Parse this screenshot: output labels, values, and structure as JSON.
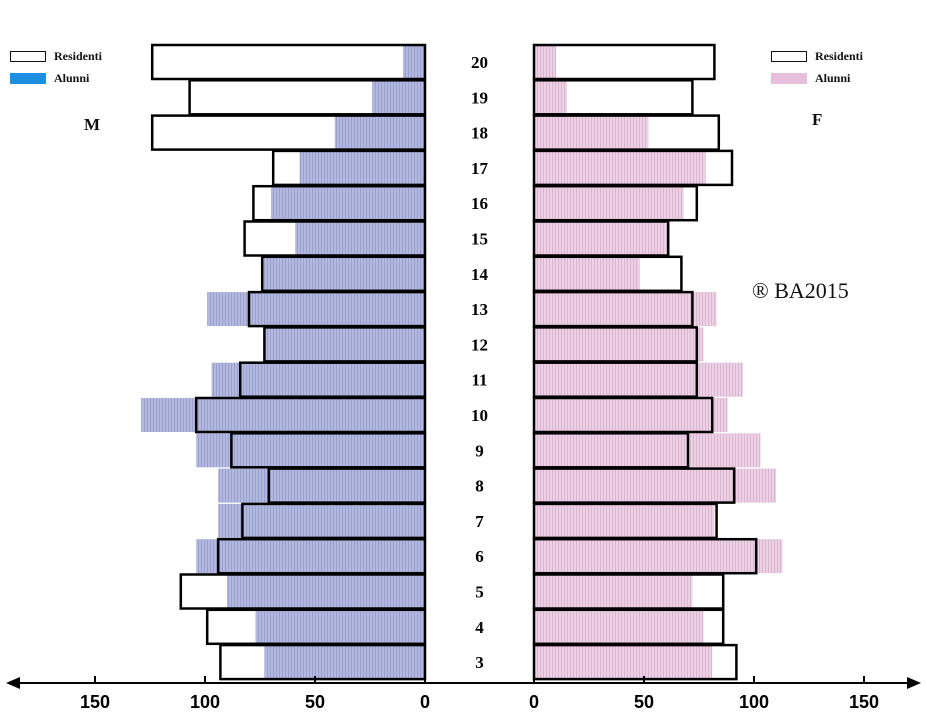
{
  "legend_left": {
    "residenti_label": "Residenti",
    "alunni_label": "Alunni",
    "alunni_color": "#1e8fe0"
  },
  "legend_right": {
    "residenti_label": "Residenti",
    "alunni_label": "Alunni",
    "alunni_color": "#e6bfdd"
  },
  "side_labels": {
    "male": "M",
    "female": "F"
  },
  "watermark": "® BA2015",
  "colors": {
    "male_alunni_fill": "#a9aed8",
    "female_alunni_fill": "#e6c5dd",
    "residenti_stroke": "#000000"
  },
  "chart_data": {
    "type": "bar",
    "orientation": "horizontal-population-pyramid",
    "categories": [
      "20",
      "19",
      "18",
      "17",
      "16",
      "15",
      "14",
      "13",
      "12",
      "11",
      "10",
      "9",
      "8",
      "7",
      "6",
      "5",
      "4",
      "3"
    ],
    "xlim": [
      -150,
      150
    ],
    "x_ticks": [
      "150",
      "100",
      "50",
      "0",
      "0",
      "50",
      "100",
      "150"
    ],
    "series": [
      {
        "name": "Residenti",
        "side": "M",
        "values": [
          124,
          107,
          124,
          69,
          78,
          82,
          74,
          80,
          73,
          84,
          104,
          88,
          71,
          83,
          94,
          111,
          99,
          93
        ]
      },
      {
        "name": "Alunni",
        "side": "M",
        "values": [
          10,
          24,
          41,
          57,
          70,
          59,
          74,
          99,
          73,
          97,
          129,
          104,
          94,
          94,
          104,
          90,
          77,
          73
        ]
      },
      {
        "name": "Residenti",
        "side": "F",
        "values": [
          82,
          72,
          84,
          90,
          74,
          61,
          67,
          72,
          74,
          74,
          81,
          70,
          91,
          83,
          101,
          86,
          86,
          92
        ]
      },
      {
        "name": "Alunni",
        "side": "F",
        "values": [
          10,
          15,
          52,
          78,
          68,
          61,
          48,
          83,
          77,
          95,
          88,
          103,
          110,
          82,
          113,
          72,
          77,
          81
        ]
      }
    ]
  }
}
